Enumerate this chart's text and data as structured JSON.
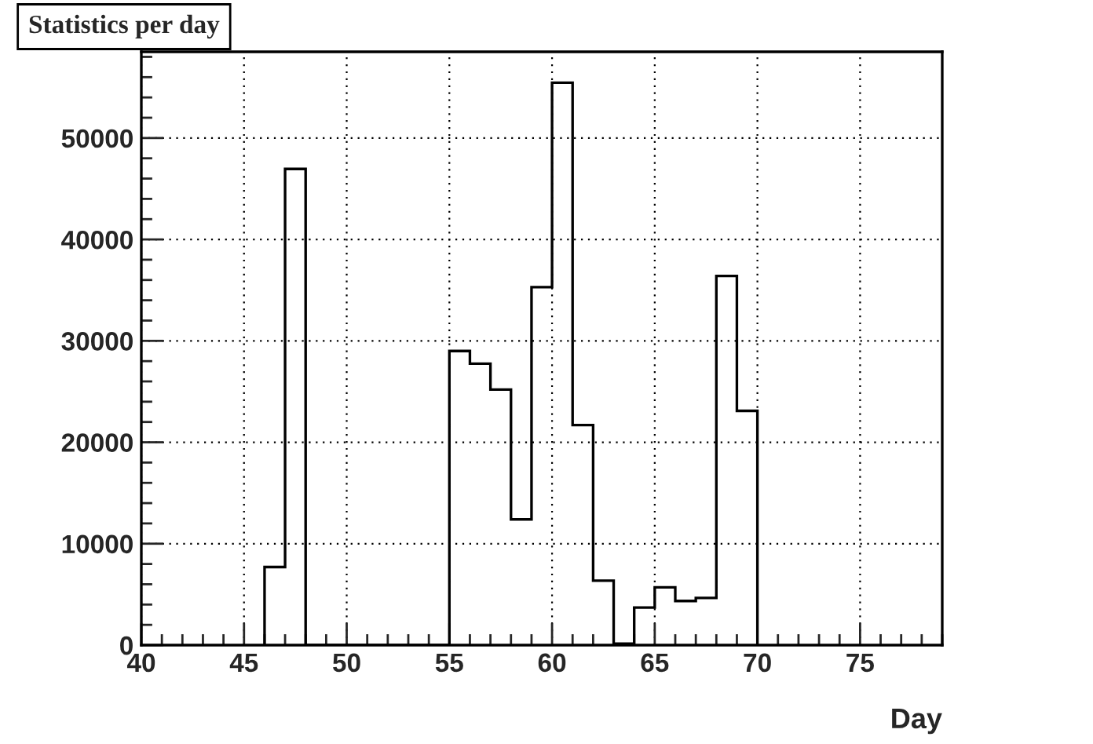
{
  "chart_data": {
    "type": "histogram",
    "title": "Statistics per day",
    "xlabel": "Day",
    "bins": [
      46,
      47,
      48,
      49,
      50,
      51,
      52,
      53,
      54,
      55,
      56,
      57,
      58,
      59,
      60,
      61,
      62,
      63,
      64,
      65,
      66,
      67,
      68,
      69,
      70
    ],
    "values": [
      7700,
      46950,
      0,
      0,
      0,
      0,
      0,
      0,
      0,
      29000,
      27750,
      25200,
      12400,
      35300,
      55450,
      21700,
      6350,
      150,
      3700,
      5700,
      4350,
      4650,
      36400,
      23100
    ],
    "color": "#000000",
    "xlim": [
      40,
      79
    ],
    "xticks": [
      40,
      45,
      50,
      55,
      60,
      65,
      70,
      75
    ],
    "ylim": [
      0,
      58500
    ],
    "yticks": [
      0,
      10000,
      20000,
      30000,
      40000,
      50000
    ],
    "grid": true,
    "legend": false
  }
}
